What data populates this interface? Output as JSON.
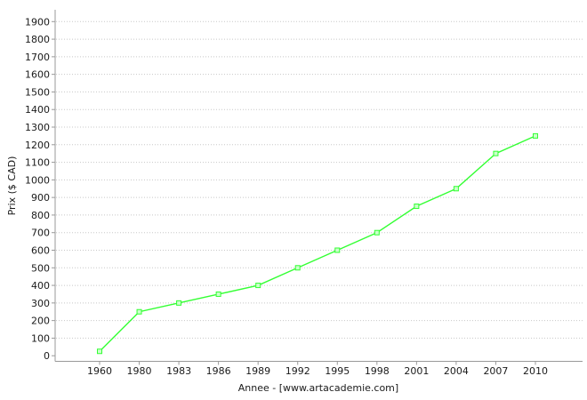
{
  "chart_data": {
    "type": "line",
    "title": "",
    "xlabel": "Annee - [www.artacademie.com]",
    "ylabel": "Prix ($ CAD)",
    "categories": [
      "1960",
      "1980",
      "1983",
      "1986",
      "1989",
      "1992",
      "1995",
      "1998",
      "2001",
      "2004",
      "2007",
      "2010"
    ],
    "series": [
      {
        "name": "Prix",
        "values": [
          25,
          250,
          300,
          350,
          400,
          500,
          600,
          700,
          850,
          950,
          1150,
          1250
        ]
      }
    ],
    "ylim": [
      0,
      1900
    ],
    "ytick_step": 100,
    "grid": "horizontal-dotted",
    "legend": "none",
    "marker": "square",
    "colors": {
      "line": "#33ff33",
      "marker_fill": "#ccffcc",
      "grid": "#c8c8c8",
      "axis": "#999999",
      "text": "#1a1a1a",
      "background": "#ffffff"
    }
  }
}
